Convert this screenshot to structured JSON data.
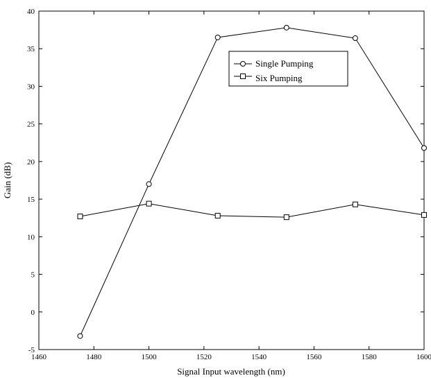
{
  "chart_data": {
    "type": "line",
    "title": "",
    "xlabel": "Signal Input wavelength (nm)",
    "ylabel": "Gain (dB)",
    "xlim": [
      1460,
      1600
    ],
    "ylim": [
      -5,
      40
    ],
    "xticks": [
      1460,
      1480,
      1500,
      1520,
      1540,
      1560,
      1580,
      1600
    ],
    "yticks": [
      -5,
      0,
      5,
      10,
      15,
      20,
      25,
      30,
      35,
      40
    ],
    "xtick_labels": [
      "1460",
      "1480",
      "1500",
      "1520",
      "1540",
      "1560",
      "1580",
      "1600"
    ],
    "ytick_labels": [
      "-5",
      "0",
      "5",
      "10",
      "15",
      "20",
      "25",
      "30",
      "35",
      "40"
    ],
    "grid": false,
    "legend_position": "top-right",
    "x": [
      1475,
      1500,
      1525,
      1550,
      1575,
      1600
    ],
    "series": [
      {
        "name": "Single Pumping",
        "marker": "circle",
        "color": "#000000",
        "values": [
          -3.2,
          17.0,
          36.5,
          37.8,
          36.4,
          21.8
        ]
      },
      {
        "name": "Six Pumping",
        "marker": "square",
        "color": "#000000",
        "values": [
          12.7,
          14.4,
          12.8,
          12.6,
          14.3,
          12.9
        ]
      }
    ]
  }
}
